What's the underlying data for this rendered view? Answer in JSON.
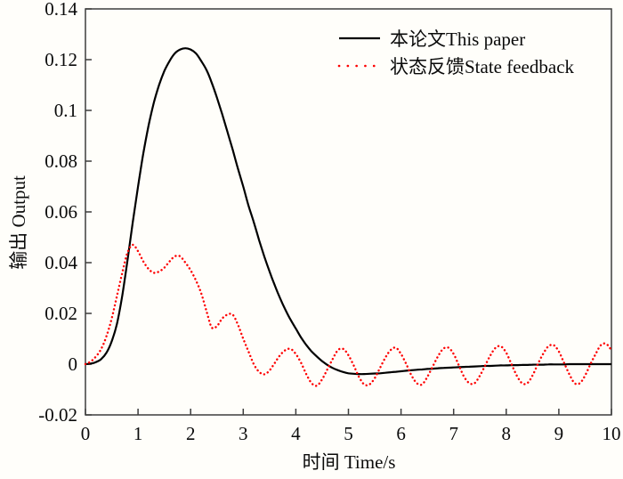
{
  "figure": {
    "background": "#fffefa",
    "axis_color": "#3d3d3d",
    "text_color": "#0a0a0a"
  },
  "chart_data": {
    "type": "line",
    "title": "",
    "xlabel": "时间 Time/s",
    "ylabel": "输出 Output",
    "xlim": [
      0,
      10
    ],
    "ylim": [
      -0.02,
      0.14
    ],
    "xticks": [
      0,
      1,
      2,
      3,
      4,
      5,
      6,
      7,
      8,
      9,
      10
    ],
    "xtick_labels": [
      "0",
      "1",
      "2",
      "3",
      "4",
      "5",
      "6",
      "7",
      "8",
      "9",
      "10"
    ],
    "yticks": [
      -0.02,
      0,
      0.02,
      0.04,
      0.06,
      0.08,
      0.1,
      0.12,
      0.14
    ],
    "ytick_labels": [
      "-0.02",
      "0",
      "0.02",
      "0.04",
      "0.06",
      "0.08",
      "0.1",
      "0.12",
      "0.14"
    ],
    "grid": false,
    "legend_position": "upper-right-inside-no-box",
    "series": [
      {
        "name": "本论文This paper",
        "color": "#000000",
        "line_style": "solid",
        "line_width": 2.2,
        "x": {
          "start": 0,
          "step": 0.1,
          "count": 101
        },
        "y": [
          0.0,
          0.0002,
          0.0008,
          0.002,
          0.0045,
          0.009,
          0.016,
          0.027,
          0.041,
          0.056,
          0.07,
          0.083,
          0.094,
          0.103,
          0.11,
          0.1155,
          0.1195,
          0.1225,
          0.124,
          0.1245,
          0.124,
          0.1225,
          0.1195,
          0.116,
          0.111,
          0.105,
          0.0985,
          0.0915,
          0.0845,
          0.077,
          0.07,
          0.0625,
          0.056,
          0.049,
          0.0425,
          0.0365,
          0.031,
          0.026,
          0.0215,
          0.0175,
          0.014,
          0.0105,
          0.0075,
          0.005,
          0.003,
          0.0012,
          -0.0003,
          -0.0015,
          -0.0024,
          -0.0031,
          -0.0036,
          -0.0038,
          -0.0039,
          -0.0039,
          -0.0038,
          -0.0037,
          -0.0036,
          -0.0034,
          -0.0032,
          -0.003,
          -0.0028,
          -0.0026,
          -0.0024,
          -0.0022,
          -0.0021,
          -0.0019,
          -0.0018,
          -0.0016,
          -0.0015,
          -0.0014,
          -0.0013,
          -0.0012,
          -0.0011,
          -0.001,
          -0.0009,
          -0.0008,
          -0.0007,
          -0.0007,
          -0.0006,
          -0.0005,
          -0.0005,
          -0.0004,
          -0.0004,
          -0.0003,
          -0.0003,
          -0.0002,
          -0.0002,
          -0.0002,
          -0.0001,
          -0.0001,
          -0.0001,
          -0.0001,
          0,
          0,
          0,
          0,
          0,
          0,
          0,
          0,
          0
        ]
      },
      {
        "name": "状态反馈State feedback",
        "color": "#fe0000",
        "line_style": "dotted",
        "line_width": 2.4,
        "x": {
          "start": 0,
          "step": 0.1,
          "count": 101
        },
        "y": [
          0,
          0.001,
          0.003,
          0.006,
          0.011,
          0.018,
          0.027,
          0.036,
          0.044,
          0.047,
          0.0445,
          0.0405,
          0.0375,
          0.036,
          0.0365,
          0.038,
          0.0405,
          0.0425,
          0.0425,
          0.04,
          0.037,
          0.033,
          0.028,
          0.021,
          0.0145,
          0.015,
          0.018,
          0.0195,
          0.0195,
          0.0155,
          0.01,
          0.005,
          0.0,
          -0.003,
          -0.004,
          -0.0025,
          0.0005,
          0.0035,
          0.0055,
          0.006,
          0.004,
          0.0005,
          -0.004,
          -0.0075,
          -0.0085,
          -0.006,
          -0.002,
          0.002,
          0.0055,
          0.006,
          0.0035,
          -0.0005,
          -0.005,
          -0.008,
          -0.008,
          -0.0055,
          -0.0015,
          0.0025,
          0.0055,
          0.0065,
          0.004,
          0.0,
          -0.0045,
          -0.0075,
          -0.008,
          -0.005,
          -0.001,
          0.003,
          0.006,
          0.0065,
          0.004,
          -0.0005,
          -0.005,
          -0.0075,
          -0.0075,
          -0.0045,
          -0.0005,
          0.0035,
          0.0065,
          0.007,
          0.0045,
          0.0,
          -0.0045,
          -0.0075,
          -0.0075,
          -0.0045,
          0.0,
          0.004,
          0.007,
          0.0075,
          0.005,
          0.0005,
          -0.004,
          -0.0075,
          -0.0075,
          -0.0045,
          0.0,
          0.004,
          0.0075,
          0.008,
          0.0055
        ]
      }
    ]
  },
  "legend": {
    "items": [
      {
        "label": "本论文This paper"
      },
      {
        "label": "状态反馈State feedback"
      }
    ]
  }
}
